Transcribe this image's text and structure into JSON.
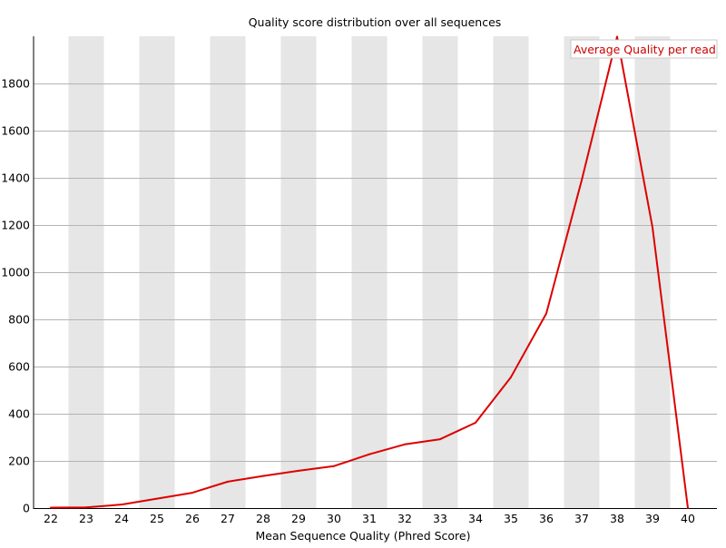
{
  "chart_data": {
    "type": "line",
    "title": "Quality score distribution over all sequences",
    "xlabel": "Mean Sequence Quality (Phred Score)",
    "ylabel": "",
    "categories": [
      "22",
      "23",
      "24",
      "25",
      "26",
      "27",
      "28",
      "29",
      "30",
      "31",
      "32",
      "33",
      "34",
      "35",
      "36",
      "37",
      "38",
      "39",
      "40"
    ],
    "series": [
      {
        "name": "Average Quality per read",
        "color": "#dd0000",
        "values": [
          2,
          3,
          15,
          40,
          65,
          112,
          136,
          158,
          178,
          228,
          270,
          292,
          362,
          555,
          825,
          1390,
          1998,
          1190,
          0
        ]
      }
    ],
    "ylim": [
      0,
      2000
    ],
    "yticks": [
      "0",
      "200",
      "400",
      "600",
      "800",
      "1000",
      "1200",
      "1400",
      "1600",
      "1800"
    ],
    "grid": true,
    "legend_position": "top-right",
    "alternating_bands": true,
    "band_color": "#e6e6e6",
    "gridline_color": "#b4b4b4"
  }
}
